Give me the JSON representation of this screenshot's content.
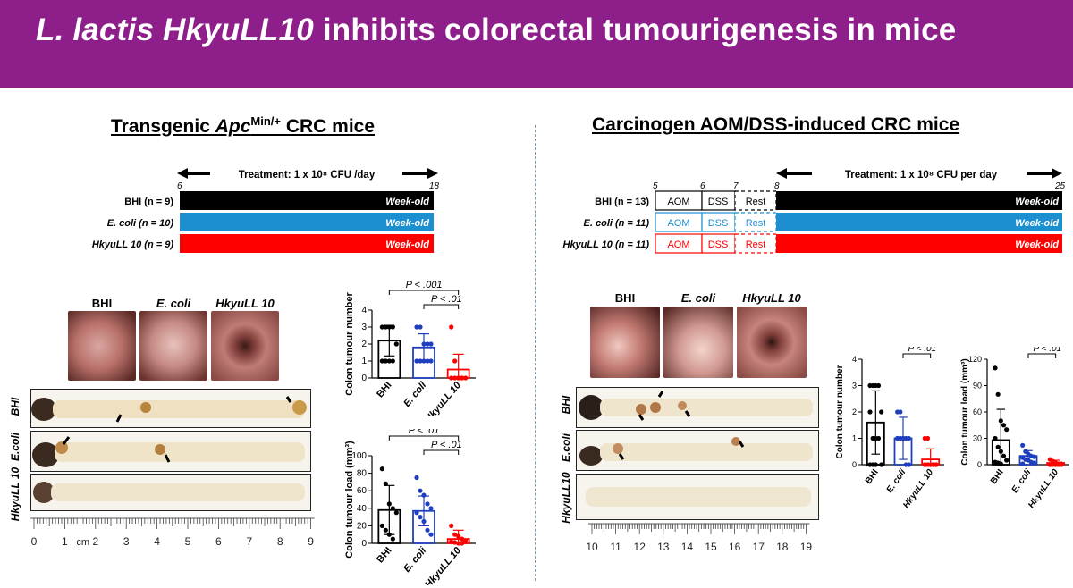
{
  "banner": {
    "title_italic": "L. lactis HkyuLL10",
    "title_rest": " inhibits colorectal tumourigenesis in mice"
  },
  "left": {
    "title_pre": "Transgenic ",
    "title_gene": "Apc",
    "title_sup": "Min/+",
    "title_post": " CRC mice",
    "treatment": "Treatment: 1 x 10⁸ CFU /day",
    "week_start": "6",
    "week_end": "18",
    "groups": [
      {
        "label": "BHI (n = 9)",
        "bar": "Week-old",
        "color": "#000000"
      },
      {
        "label": "E. coli (n = 10)",
        "bar": "Week-old",
        "color": "#1b8fd0"
      },
      {
        "label": "HkyuLL 10 (n = 9)",
        "bar": "Week-old",
        "color": "#ff0000"
      }
    ],
    "photo_labels": [
      "BHI",
      "E. coli",
      "HkyuLL 10"
    ],
    "colon_labels": [
      "BHI",
      "E.coli",
      "HkyuLL 10"
    ],
    "ruler_ticks": [
      "0",
      "1",
      "2",
      "3",
      "4",
      "5",
      "6",
      "7",
      "8",
      "9"
    ],
    "ruler_unit": "cm"
  },
  "right": {
    "title": "Carcinogen AOM/DSS-induced CRC mice",
    "treatment": "Treatment: 1 x 10⁸ CFU per day",
    "weeks": [
      "5",
      "6",
      "7",
      "8",
      "25"
    ],
    "phases": [
      "AOM",
      "DSS",
      "Rest"
    ],
    "groups": [
      {
        "label": "BHI (n = 13)",
        "bar": "Week-old",
        "color": "#000000"
      },
      {
        "label": "E. coli (n = 11)",
        "bar": "Week-old",
        "color": "#1b8fd0"
      },
      {
        "label": "HkyuLL 10 (n = 11)",
        "bar": "Week-old",
        "color": "#ff0000"
      }
    ],
    "photo_labels": [
      "BHI",
      "E. coli",
      "HkyuLL 10"
    ],
    "colon_labels": [
      "BHI",
      "E.coli",
      "HkyuLL10"
    ],
    "ruler_ticks": [
      "10",
      "11",
      "12",
      "13",
      "14",
      "15",
      "16",
      "17",
      "18",
      "19"
    ]
  },
  "chart_data": [
    {
      "type": "bar",
      "title": "",
      "ylabel": "Colon tumour number",
      "categories": [
        "BHI",
        "E. coli",
        "HkyuLL 10"
      ],
      "values": [
        2.2,
        1.8,
        0.5
      ],
      "errors": [
        0.9,
        0.8,
        0.9
      ],
      "ylim": [
        0,
        4
      ],
      "yticks": [
        "0",
        "1",
        "2",
        "3",
        "4"
      ],
      "points": [
        [
          3,
          3,
          3,
          3,
          2,
          1,
          1,
          1,
          1
        ],
        [
          3,
          3,
          2,
          2,
          2,
          1,
          1,
          1,
          1,
          1
        ],
        [
          3,
          1,
          0,
          0,
          0,
          0,
          0,
          0,
          0
        ]
      ],
      "colors": [
        "#000000",
        "#1f3fbf",
        "#ff0000"
      ],
      "annotations": [
        "P < .001",
        "P < .01"
      ]
    },
    {
      "type": "bar",
      "title": "",
      "ylabel": "Colon tumour load (mm³)",
      "categories": [
        "BHI",
        "E. coli",
        "HkyuLL 10"
      ],
      "values": [
        38,
        37,
        5
      ],
      "errors": [
        28,
        17,
        10
      ],
      "ylim": [
        0,
        100
      ],
      "yticks": [
        "0",
        "20",
        "40",
        "60",
        "80",
        "100"
      ],
      "points": [
        [
          85,
          68,
          45,
          40,
          35,
          20,
          15,
          10,
          5
        ],
        [
          75,
          60,
          55,
          45,
          40,
          35,
          30,
          25,
          15,
          10
        ],
        [
          20,
          10,
          8,
          5,
          3,
          2,
          1,
          0,
          0
        ]
      ],
      "colors": [
        "#000000",
        "#1f3fbf",
        "#ff0000"
      ],
      "annotations": [
        "P < .01",
        "P < .01"
      ]
    },
    {
      "type": "bar",
      "title": "",
      "ylabel": "Colon tumour number",
      "categories": [
        "BHI",
        "E. coli",
        "HkyuLL 10"
      ],
      "values": [
        1.6,
        1.0,
        0.2
      ],
      "errors": [
        1.2,
        0.8,
        0.4
      ],
      "ylim": [
        0,
        4
      ],
      "yticks": [
        "0",
        "1",
        "2",
        "3",
        "4"
      ],
      "points": [
        [
          3,
          3,
          3,
          3,
          2,
          2,
          1,
          1,
          1,
          0,
          0,
          0,
          0
        ],
        [
          2,
          2,
          1,
          1,
          1,
          1,
          1,
          1,
          0,
          0,
          1
        ],
        [
          1,
          1,
          0,
          0,
          0,
          0,
          0,
          0,
          0,
          0,
          0
        ]
      ],
      "colors": [
        "#000000",
        "#1f3fbf",
        "#ff0000"
      ],
      "annotations": [
        "P < .001",
        "P < .01"
      ]
    },
    {
      "type": "bar",
      "title": "",
      "ylabel": "Colon tumour load (mm³)",
      "categories": [
        "BHI",
        "E. coli",
        "HkyuLL 10"
      ],
      "values": [
        28,
        10,
        2
      ],
      "errors": [
        35,
        6,
        3
      ],
      "ylim": [
        0,
        120
      ],
      "yticks": [
        "0",
        "30",
        "60",
        "90",
        "120"
      ],
      "points": [
        [
          110,
          80,
          50,
          45,
          40,
          30,
          20,
          15,
          10,
          5,
          3,
          2,
          1
        ],
        [
          22,
          15,
          12,
          10,
          9,
          8,
          6,
          5,
          3,
          2,
          1
        ],
        [
          6,
          4,
          2,
          1,
          1,
          0,
          0,
          0,
          0,
          0,
          0
        ]
      ],
      "colors": [
        "#000000",
        "#1f3fbf",
        "#ff0000"
      ],
      "annotations": [
        "P < .001",
        "P < .01"
      ]
    }
  ]
}
